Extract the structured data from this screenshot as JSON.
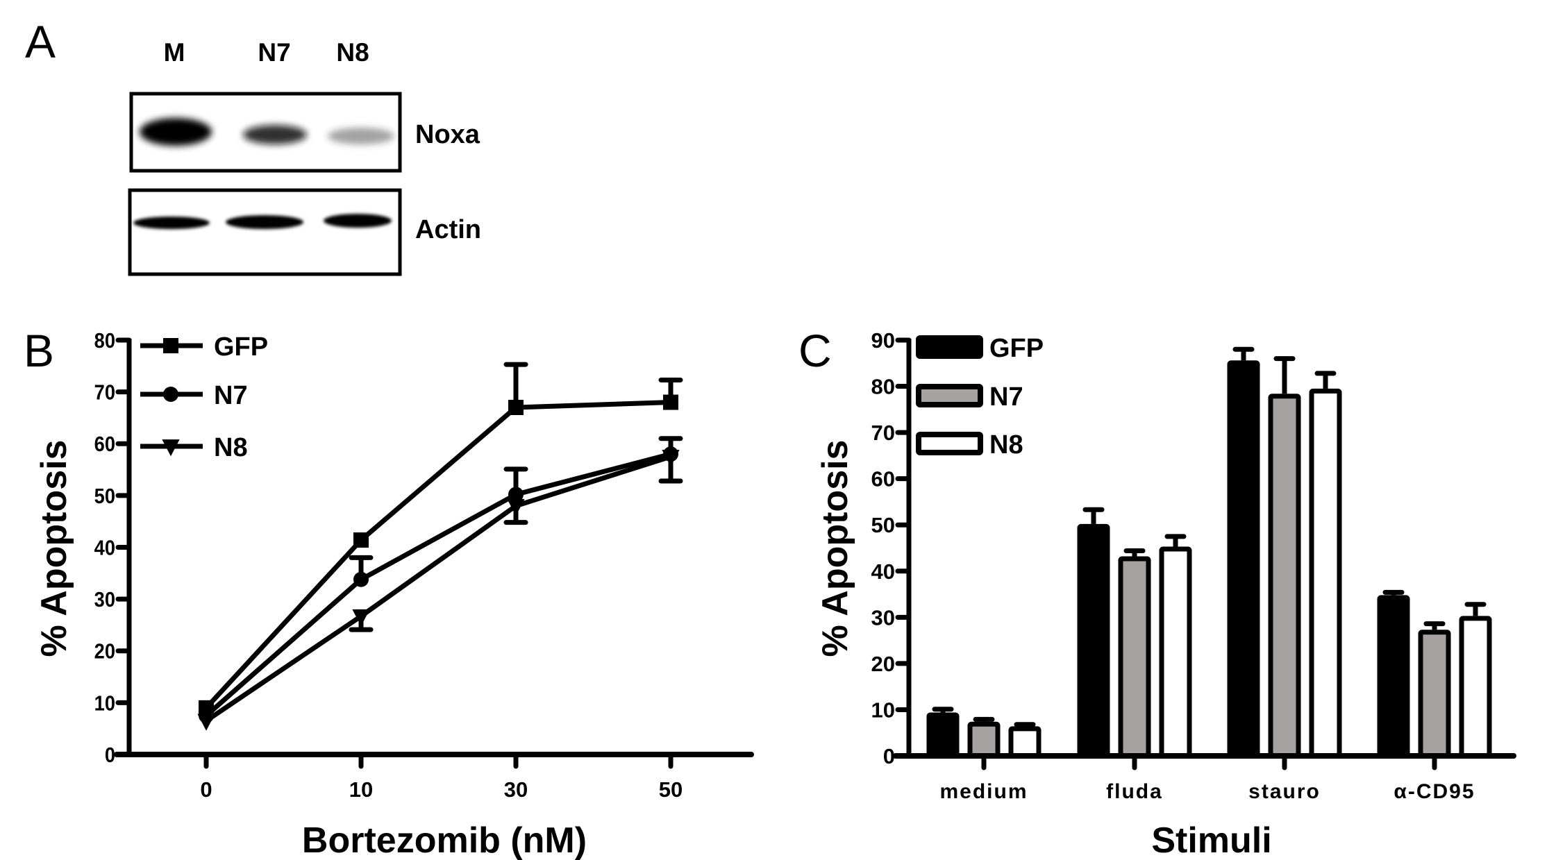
{
  "figure": {
    "panel_labels": {
      "a": "A",
      "b": "B",
      "c": "C"
    }
  },
  "western_blot": {
    "lanes": [
      "M",
      "N7",
      "N8"
    ],
    "rows": [
      {
        "label": "Noxa",
        "intensity": [
          1.0,
          0.65,
          0.35
        ]
      },
      {
        "label": "Actin",
        "intensity": [
          1.0,
          1.0,
          1.0
        ]
      }
    ]
  },
  "chart_data": [
    {
      "type": "line",
      "panel": "B",
      "title": "",
      "xlabel": "Bortezomib (nM)",
      "ylabel": "% Apoptosis",
      "x": [
        0,
        10,
        30,
        50
      ],
      "x_tick_labels": [
        "0",
        "10",
        "30",
        "50"
      ],
      "ylim": [
        0,
        80
      ],
      "y_ticks": [
        0,
        10,
        20,
        30,
        40,
        50,
        60,
        70,
        80
      ],
      "grid": false,
      "legend_position": "top-left",
      "series": [
        {
          "name": "GFP",
          "marker": "square",
          "values": [
            9.0,
            41.4,
            67.0,
            68.0
          ],
          "err_upper": [
            null,
            null,
            75.3,
            72.3
          ],
          "err_lower": [
            null,
            null,
            null,
            null
          ]
        },
        {
          "name": "N7",
          "marker": "circle",
          "values": [
            7.5,
            33.8,
            50.2,
            58.0
          ],
          "err_upper": [
            null,
            38.0,
            55.1,
            61.0
          ],
          "err_lower": [
            null,
            null,
            null,
            null
          ]
        },
        {
          "name": "N8",
          "marker": "triangle-down",
          "values": [
            6.5,
            26.7,
            48.0,
            57.5
          ],
          "err_upper": [
            null,
            null,
            null,
            null
          ],
          "err_lower": [
            null,
            24.1,
            44.8,
            52.8
          ]
        }
      ]
    },
    {
      "type": "bar",
      "panel": "C",
      "title": "",
      "xlabel": "Stimuli",
      "ylabel": "% Apoptosis",
      "categories": [
        "medium",
        "fluda",
        "stauro",
        "α-CD95"
      ],
      "ylim": [
        0,
        90
      ],
      "y_ticks": [
        0,
        10,
        20,
        30,
        40,
        50,
        60,
        70,
        80,
        90
      ],
      "grid": false,
      "legend_position": "top-left",
      "series": [
        {
          "name": "GFP",
          "color": "#000000",
          "values": [
            9.4,
            50.2,
            85.6,
            34.8
          ],
          "err_upper": [
            10.1,
            53.3,
            88.0,
            35.4
          ]
        },
        {
          "name": "N7",
          "color": "#a7a2a2",
          "values": [
            7.4,
            43.2,
            78.4,
            27.3
          ],
          "err_upper": [
            7.9,
            44.4,
            86.0,
            28.6
          ]
        },
        {
          "name": "N8",
          "color": "#ffffff",
          "values": [
            6.4,
            45.3,
            79.5,
            30.3
          ],
          "err_upper": [
            6.8,
            47.5,
            82.8,
            32.8
          ]
        }
      ]
    }
  ]
}
